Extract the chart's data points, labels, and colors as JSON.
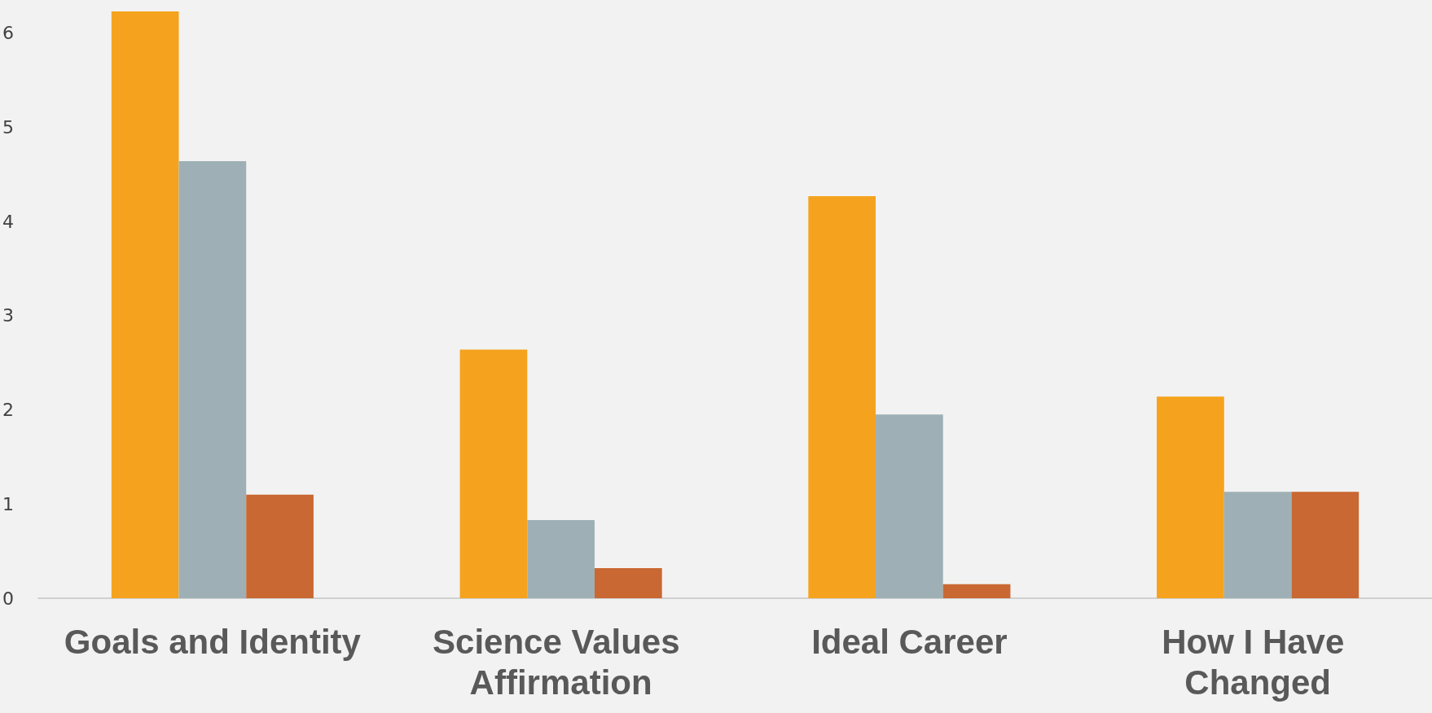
{
  "chart_data": {
    "type": "bar",
    "categories": [
      "Goals and Identity",
      "Science Values Affirmation",
      "Ideal Career",
      "How I Have Changed"
    ],
    "series": [
      {
        "color": "#f5a31e",
        "values": [
          6.23,
          2.64,
          4.27,
          2.14
        ]
      },
      {
        "color": "#9eb0b5",
        "values": [
          4.64,
          0.83,
          1.95,
          1.13
        ]
      },
      {
        "color": "#c96832",
        "values": [
          1.1,
          0.32,
          0.15,
          1.13
        ]
      }
    ],
    "ylim": [
      0,
      6.3
    ],
    "yticks": [
      0,
      1,
      2,
      3,
      4,
      5,
      6
    ],
    "grid": false
  }
}
